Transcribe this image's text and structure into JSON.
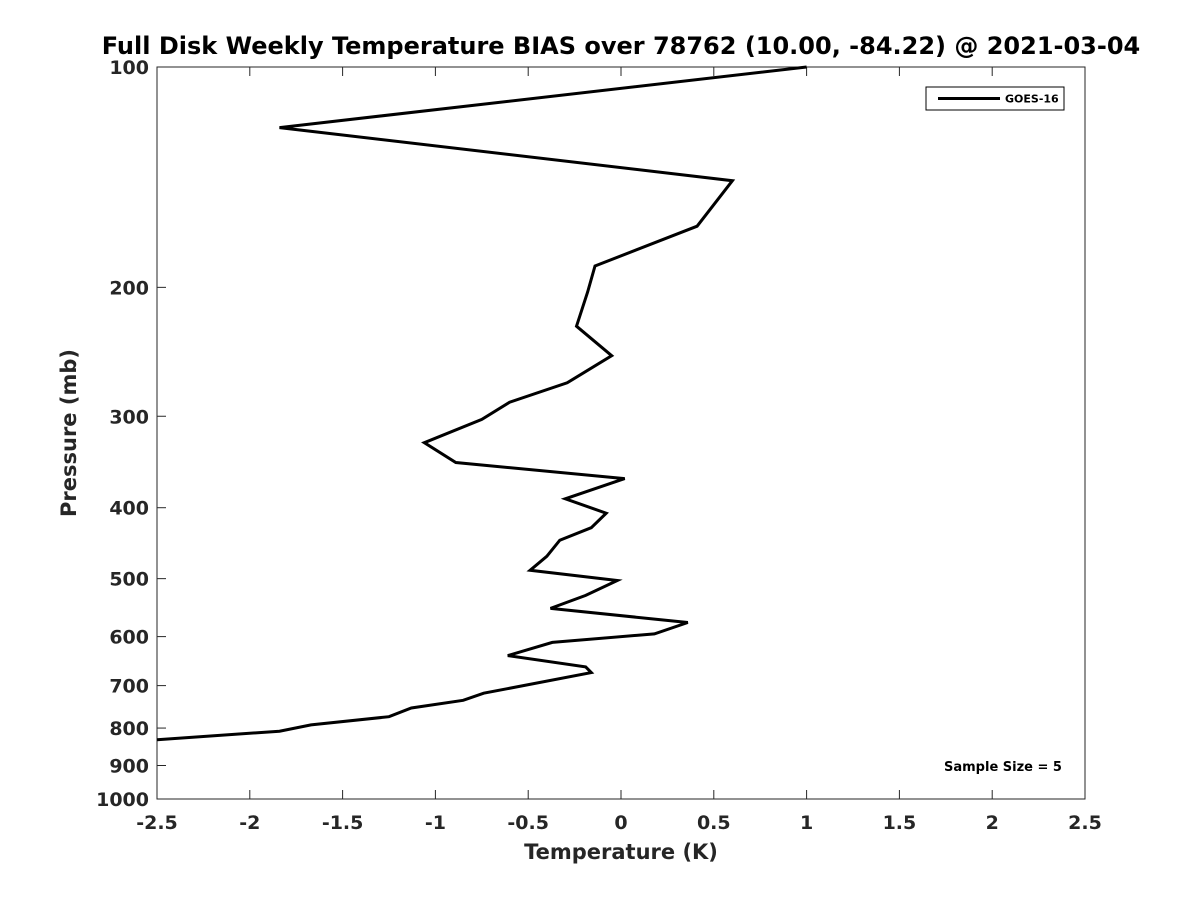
{
  "chart_data": {
    "type": "line",
    "title": "Full Disk Weekly Temperature BIAS over 78762 (10.00, -84.22) @ 2021-03-04",
    "xlabel": "Temperature (K)",
    "ylabel": "Pressure (mb)",
    "xlim": [
      -2.5,
      2.5
    ],
    "ylim": [
      100,
      1000
    ],
    "y_scale": "log",
    "y_reversed": true,
    "grid": false,
    "x_ticks": [
      "-2.5",
      "-2",
      "-1.5",
      "-1",
      "-0.5",
      "0",
      "0.5",
      "1",
      "1.5",
      "2",
      "2.5"
    ],
    "x_tick_values": [
      -2.5,
      -2,
      -1.5,
      -1,
      -0.5,
      0,
      0.5,
      1,
      1.5,
      2,
      2.5
    ],
    "y_ticks": [
      "100",
      "200",
      "300",
      "400",
      "500",
      "600",
      "700",
      "800",
      "900",
      "1000"
    ],
    "y_tick_values": [
      100,
      200,
      300,
      400,
      500,
      600,
      700,
      800,
      900,
      1000
    ],
    "legend": {
      "placement": "top-right",
      "entries": [
        "GOES-16"
      ]
    },
    "annotation": "Sample Size = 5",
    "series": [
      {
        "name": "GOES-16",
        "color": "#000000",
        "x": [
          1.0,
          -1.84,
          0.6,
          0.41,
          -0.14,
          -0.18,
          -0.24,
          -0.05,
          -0.29,
          -0.6,
          -0.75,
          -1.06,
          -0.89,
          0.02,
          -0.3,
          -0.08,
          -0.16,
          -0.33,
          -0.4,
          -0.49,
          -0.02,
          -0.19,
          -0.38,
          0.36,
          0.18,
          -0.37,
          -0.61,
          -0.19,
          -0.16,
          -0.74,
          -0.85,
          -1.13,
          -1.25,
          -1.67,
          -1.84,
          -2.5
        ],
        "y": [
          100,
          121,
          143,
          165,
          187,
          203,
          226,
          248,
          270,
          287,
          303,
          326,
          347,
          365,
          389,
          407,
          426,
          443,
          466,
          487,
          503,
          527,
          549,
          574,
          595,
          611,
          637,
          660,
          672,
          717,
          733,
          751,
          772,
          792,
          808,
          830
        ]
      }
    ]
  }
}
